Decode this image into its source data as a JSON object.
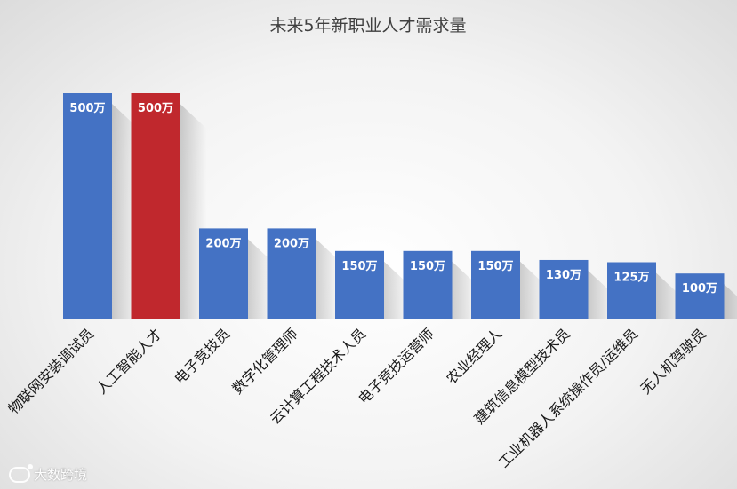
{
  "chart_data": {
    "type": "bar",
    "title": "未来5年新职业人才需求量",
    "categories": [
      "物联网安装调试员",
      "人工智能人才",
      "电子竞技员",
      "数字化管理师",
      "云计算工程技术人员",
      "电子竞技运营师",
      "农业经理人",
      "建筑信息模型技术员",
      "工业机器人系统操作员/运维员",
      "无人机驾驶员"
    ],
    "values": [
      500,
      500,
      200,
      200,
      150,
      150,
      150,
      130,
      125,
      100
    ],
    "value_labels": [
      "500万",
      "500万",
      "200万",
      "200万",
      "150万",
      "150万",
      "150万",
      "130万",
      "125万",
      "100万"
    ],
    "unit": "万",
    "ylim": [
      0,
      500
    ],
    "highlight_index": 1,
    "colors": {
      "bar": "#4472c4",
      "highlight": "#c0282d",
      "label": "#ffffff"
    },
    "grid": false,
    "legend": "none"
  },
  "watermark": {
    "text": "大数跨境",
    "icon": "logo-icon"
  }
}
